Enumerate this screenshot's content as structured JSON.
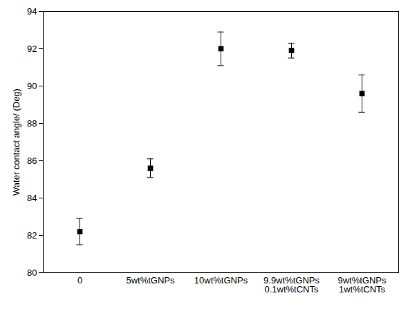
{
  "chart_data": {
    "type": "scatter",
    "y_label": "Water contact angle/ (Deg)",
    "categories": [
      "0",
      "5wt%tGNPs",
      "10wt%tGNPs",
      "9.9wt%tGNPs 0.1wt%tCNTs",
      "9wt%tGNPs 1wt%tCNTs"
    ],
    "values": [
      82.2,
      85.6,
      92.0,
      91.9,
      89.6
    ],
    "errors": [
      0.7,
      0.5,
      0.9,
      0.4,
      1.0
    ],
    "color": "#000000",
    "marker": "square",
    "ylim": [
      80,
      94
    ],
    "yticks": [
      80,
      82,
      84,
      86,
      88,
      90,
      92,
      94
    ],
    "grid": false
  }
}
